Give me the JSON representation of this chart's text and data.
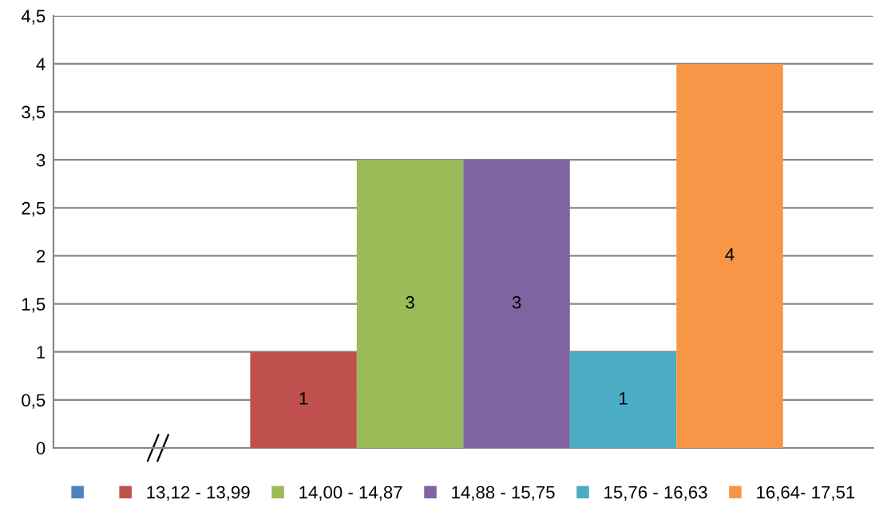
{
  "chart_data": {
    "type": "bar",
    "categories": [
      null
    ],
    "series": [
      {
        "color": "#4f81bd",
        "values": [
          null
        ]
      },
      {
        "name": "13,12 - 13,99",
        "color": "#c0504d",
        "values": [
          1
        ]
      },
      {
        "name": "14,00 - 14,87",
        "color": "#9bbb59",
        "values": [
          3
        ]
      },
      {
        "name": "14,88 - 15,75",
        "color": "#8064a2",
        "values": [
          3
        ]
      },
      {
        "name": "15,76 - 16,63",
        "color": "#4bacc6",
        "values": [
          1
        ]
      },
      {
        "name": "16,64- 17,51",
        "color": "#f79646",
        "values": [
          4
        ]
      }
    ],
    "ylim": [
      0,
      4.5
    ],
    "yticks": [
      0,
      {
        "value": 0.5,
        "label": "0,5"
      },
      1,
      {
        "value": 1.5,
        "label": "1,5"
      },
      2,
      {
        "value": 2.5,
        "label": "2,5"
      },
      3,
      {
        "value": 3.5,
        "label": "3,5"
      },
      4,
      {
        "value": 4.5,
        "label": "4,5"
      }
    ],
    "grid": "y",
    "legend": "bottom",
    "data_labels": true
  }
}
